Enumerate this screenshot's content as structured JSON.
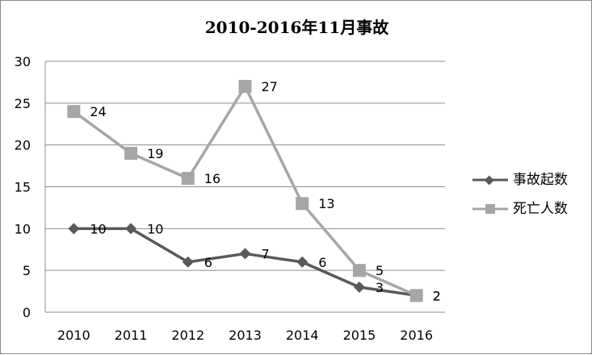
{
  "chart_data": {
    "type": "line",
    "title": "2010-2016年11月事故",
    "xlabel": "",
    "ylabel": "",
    "categories": [
      "2010",
      "2011",
      "2012",
      "2013",
      "2014",
      "2015",
      "2016"
    ],
    "series": [
      {
        "name": "事故起数",
        "values": [
          10,
          10,
          6,
          7,
          6,
          3,
          2
        ],
        "color": "#595959",
        "marker": "diamond"
      },
      {
        "name": "死亡人数",
        "values": [
          24,
          19,
          16,
          27,
          13,
          5,
          2
        ],
        "color": "#a6a6a6",
        "marker": "square"
      }
    ],
    "yticks": [
      0,
      5,
      10,
      15,
      20,
      25,
      30
    ],
    "ylim": [
      0,
      30
    ],
    "grid": true,
    "legend_position": "right",
    "data_labels": true
  }
}
